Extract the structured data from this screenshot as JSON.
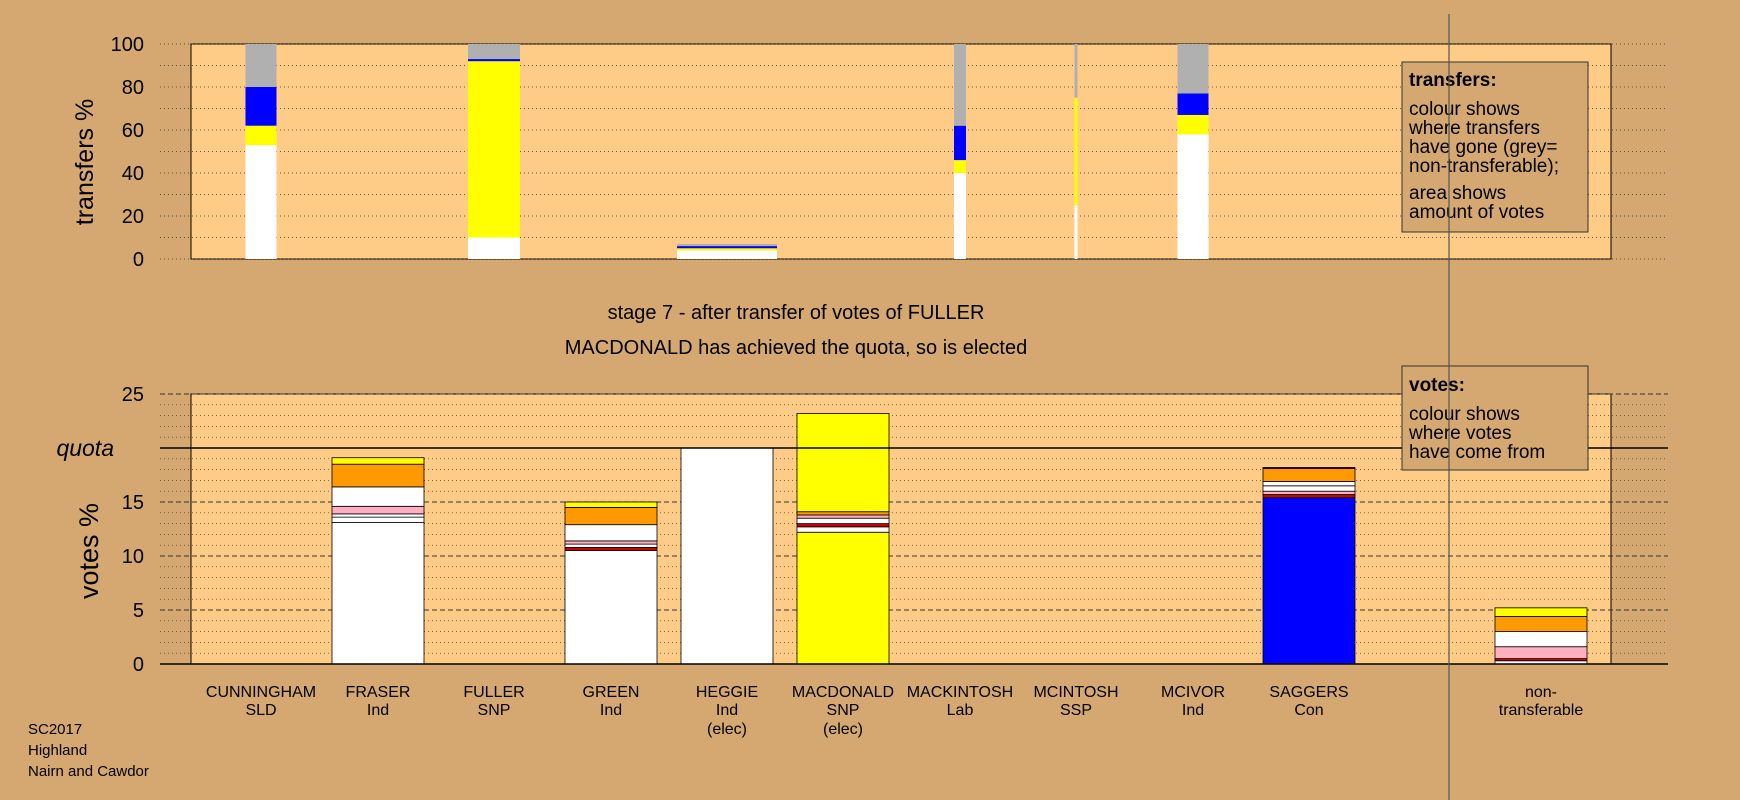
{
  "colors": {
    "page_bg": "#d4a870",
    "plot_bg": "#ffcc88",
    "grey": "#b0b0b0",
    "blue": "#0000ff",
    "yellow": "#ffff00",
    "white": "#ffffff",
    "orange": "#ff9900",
    "pink": "#ffb0c0",
    "red": "#cc0000"
  },
  "chart_data": [
    {
      "type": "bar",
      "stacked": true,
      "ylabel": "transfers %",
      "ylim": [
        0,
        100
      ],
      "yticks": [
        0,
        20,
        40,
        60,
        80,
        100
      ],
      "grid": true,
      "candidates": [
        "CUNNINGHAM",
        "FRASER",
        "FULLER",
        "GREEN",
        "HEGGIE",
        "MACDONALD",
        "MACKINTOSH",
        "MCINTOSH",
        "MCIVOR",
        "SAGGERS"
      ],
      "bars": [
        {
          "candidate": "CUNNINGHAM",
          "width": "narrow",
          "segments": [
            {
              "value": 53,
              "color": "white"
            },
            {
              "value": 9,
              "color": "yellow"
            },
            {
              "value": 18,
              "color": "blue"
            },
            {
              "value": 20,
              "color": "grey"
            }
          ]
        },
        {
          "candidate": "FULLER",
          "width": "wide",
          "segments": [
            {
              "value": 10,
              "color": "white"
            },
            {
              "value": 82,
              "color": "yellow"
            },
            {
              "value": 1,
              "color": "blue"
            },
            {
              "value": 7,
              "color": "grey"
            }
          ]
        },
        {
          "candidate": "HEGGIE",
          "width": "widest",
          "segments": [
            {
              "value": 4,
              "color": "white"
            },
            {
              "value": 1,
              "color": "yellow"
            },
            {
              "value": 1,
              "color": "blue"
            },
            {
              "value": 1,
              "color": "grey"
            }
          ]
        },
        {
          "candidate": "MACKINTOSH",
          "width": "thin",
          "segments": [
            {
              "value": 40,
              "color": "white"
            },
            {
              "value": 6,
              "color": "yellow"
            },
            {
              "value": 16,
              "color": "blue"
            },
            {
              "value": 38,
              "color": "grey"
            }
          ]
        },
        {
          "candidate": "MCINTOSH",
          "width": "hairline",
          "segments": [
            {
              "value": 25,
              "color": "white"
            },
            {
              "value": 50,
              "color": "yellow"
            },
            {
              "value": 25,
              "color": "grey"
            }
          ]
        },
        {
          "candidate": "MCIVOR",
          "width": "narrow",
          "segments": [
            {
              "value": 58,
              "color": "white"
            },
            {
              "value": 9,
              "color": "yellow"
            },
            {
              "value": 10,
              "color": "blue"
            },
            {
              "value": 23,
              "color": "grey"
            }
          ]
        }
      ],
      "legend": {
        "title": "transfers:",
        "lines1": [
          "colour shows",
          "where transfers",
          "have gone (grey=",
          "non-transferable);"
        ],
        "lines2": [
          "area shows",
          "amount of votes"
        ]
      }
    },
    {
      "type": "bar",
      "stacked": true,
      "ylabel": "votes %",
      "ylim": [
        0,
        25
      ],
      "yticks": [
        0,
        5,
        10,
        15,
        20,
        25
      ],
      "quota": 20,
      "quota_label": "quota",
      "grid": true,
      "title_lines": [
        "stage 7 - after transfer of votes of FULLER",
        "MACDONALD has achieved the quota, so is elected"
      ],
      "categories": [
        {
          "name": "CUNNINGHAM",
          "party": "SLD",
          "note": ""
        },
        {
          "name": "FRASER",
          "party": "Ind",
          "note": ""
        },
        {
          "name": "FULLER",
          "party": "SNP",
          "note": ""
        },
        {
          "name": "GREEN",
          "party": "Ind",
          "note": ""
        },
        {
          "name": "HEGGIE",
          "party": "Ind",
          "note": "(elec)"
        },
        {
          "name": "MACDONALD",
          "party": "SNP",
          "note": "(elec)"
        },
        {
          "name": "MACKINTOSH",
          "party": "Lab",
          "note": ""
        },
        {
          "name": "MCINTOSH",
          "party": "SSP",
          "note": ""
        },
        {
          "name": "MCIVOR",
          "party": "Ind",
          "note": ""
        },
        {
          "name": "SAGGERS",
          "party": "Con",
          "note": ""
        }
      ],
      "nontransferable_label": [
        "non-",
        "transferable"
      ],
      "bars": [
        {
          "candidate": "FRASER",
          "segments": [
            {
              "value": 13.1,
              "color": "white"
            },
            {
              "value": 0.5,
              "color": "white"
            },
            {
              "value": 0.3,
              "color": "white"
            },
            {
              "value": 0.7,
              "color": "pink"
            },
            {
              "value": 1.8,
              "color": "white"
            },
            {
              "value": 2.1,
              "color": "orange"
            },
            {
              "value": 0.6,
              "color": "yellow"
            }
          ]
        },
        {
          "candidate": "GREEN",
          "segments": [
            {
              "value": 10.5,
              "color": "white"
            },
            {
              "value": 0.3,
              "color": "red"
            },
            {
              "value": 0.3,
              "color": "white"
            },
            {
              "value": 0.3,
              "color": "pink"
            },
            {
              "value": 1.5,
              "color": "white"
            },
            {
              "value": 1.6,
              "color": "orange"
            },
            {
              "value": 0.5,
              "color": "yellow"
            }
          ]
        },
        {
          "candidate": "HEGGIE",
          "segments": [
            {
              "value": 20,
              "color": "white"
            }
          ]
        },
        {
          "candidate": "MACDONALD",
          "segments": [
            {
              "value": 12.2,
              "color": "yellow"
            },
            {
              "value": 0.5,
              "color": "white"
            },
            {
              "value": 0.3,
              "color": "red"
            },
            {
              "value": 0.5,
              "color": "white"
            },
            {
              "value": 0.3,
              "color": "pink"
            },
            {
              "value": 0.3,
              "color": "orange"
            },
            {
              "value": 9.1,
              "color": "yellow"
            }
          ]
        },
        {
          "candidate": "SAGGERS",
          "segments": [
            {
              "value": 15.4,
              "color": "blue"
            },
            {
              "value": 0.3,
              "color": "red"
            },
            {
              "value": 0.3,
              "color": "pink"
            },
            {
              "value": 0.5,
              "color": "white"
            },
            {
              "value": 0.4,
              "color": "white"
            },
            {
              "value": 1.2,
              "color": "orange"
            },
            {
              "value": 0.1,
              "color": "red"
            }
          ]
        },
        {
          "candidate": "non-transferable",
          "segments": [
            {
              "value": 0.3,
              "color": "white"
            },
            {
              "value": 0.2,
              "color": "red"
            },
            {
              "value": 1.1,
              "color": "pink"
            },
            {
              "value": 1.4,
              "color": "white"
            },
            {
              "value": 1.4,
              "color": "orange"
            },
            {
              "value": 0.8,
              "color": "yellow"
            }
          ]
        }
      ],
      "legend": {
        "title": "votes:",
        "lines": [
          "colour shows",
          "where votes",
          "have come from"
        ]
      }
    }
  ],
  "footer": {
    "line1": "SC2017",
    "line2": "Highland",
    "line3": "Nairn and Cawdor"
  }
}
